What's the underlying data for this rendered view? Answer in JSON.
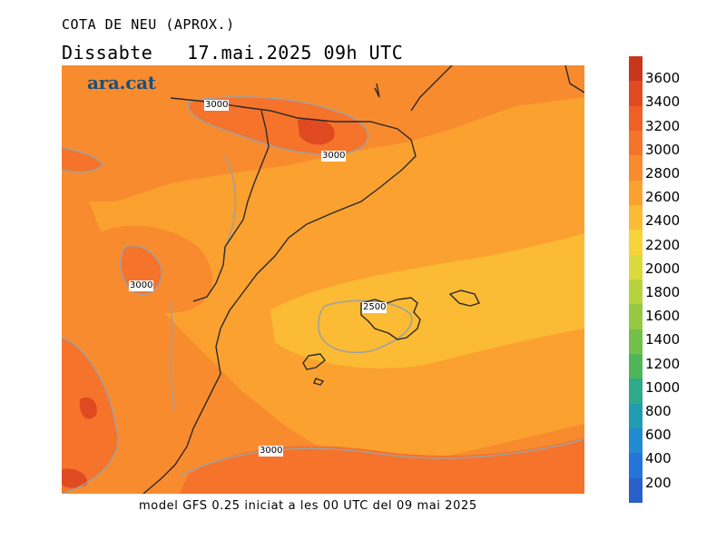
{
  "header": {
    "title": "COTA DE NEU (APROX.)",
    "subtitle": "Dissabte   17.mai.2025 09h UTC"
  },
  "map": {
    "logo": "ara.cat",
    "contour_labels": [
      "3000",
      "3000",
      "3000",
      "2500",
      "3000"
    ]
  },
  "footer": "model GFS 0.25 iniciat a les 00 UTC del 09 mai 2025",
  "legend": {
    "labels": [
      "3600",
      "3400",
      "3200",
      "3000",
      "2800",
      "2600",
      "2400",
      "2200",
      "2000",
      "1800",
      "1600",
      "1400",
      "1200",
      "1000",
      "800",
      "600",
      "400",
      "200"
    ],
    "colors": [
      "#c8361c",
      "#e04a20",
      "#ef5f26",
      "#f5732a",
      "#f98b2f",
      "#fba130",
      "#fbbb34",
      "#f7d439",
      "#dada3c",
      "#b8d23e",
      "#96c941",
      "#72c04a",
      "#4fb658",
      "#2ea98a",
      "#229cb0",
      "#228bd0",
      "#2574da",
      "#2860cc"
    ]
  },
  "colors": {
    "above_3000": "#f5732a",
    "2800_3000": "#f98b2f",
    "2600_2800": "#fba130",
    "2400_2600": "#fbbb34",
    "3200_3400": "#e04a20"
  }
}
